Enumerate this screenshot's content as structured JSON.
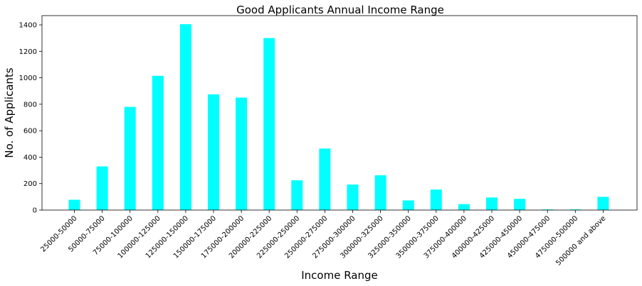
{
  "chart_data": {
    "type": "bar",
    "title": "Good Applicants Annual Income Range",
    "xlabel": "Income Range",
    "ylabel": "No. of Applicants",
    "categories": [
      "25000-50000",
      "50000-75000",
      "75000-100000",
      "100000-125000",
      "125000-150000",
      "150000-175000",
      "175000-200000",
      "200000-225000",
      "225000-250000",
      "250000-275000",
      "275000-300000",
      "300000-325000",
      "325000-350000",
      "350000-375000",
      "375000-400000",
      "400000-425000",
      "425000-450000",
      "450000-475000",
      "475000-500000",
      "500000 and above"
    ],
    "values": [
      78,
      330,
      780,
      1015,
      1405,
      875,
      850,
      1300,
      225,
      465,
      193,
      263,
      73,
      155,
      45,
      95,
      85,
      5,
      5,
      100
    ],
    "ylim": [
      0,
      1470
    ],
    "yticks": [
      0,
      200,
      400,
      600,
      800,
      1000,
      1200,
      1400
    ],
    "bar_color": "#00ffff",
    "grid": false
  }
}
